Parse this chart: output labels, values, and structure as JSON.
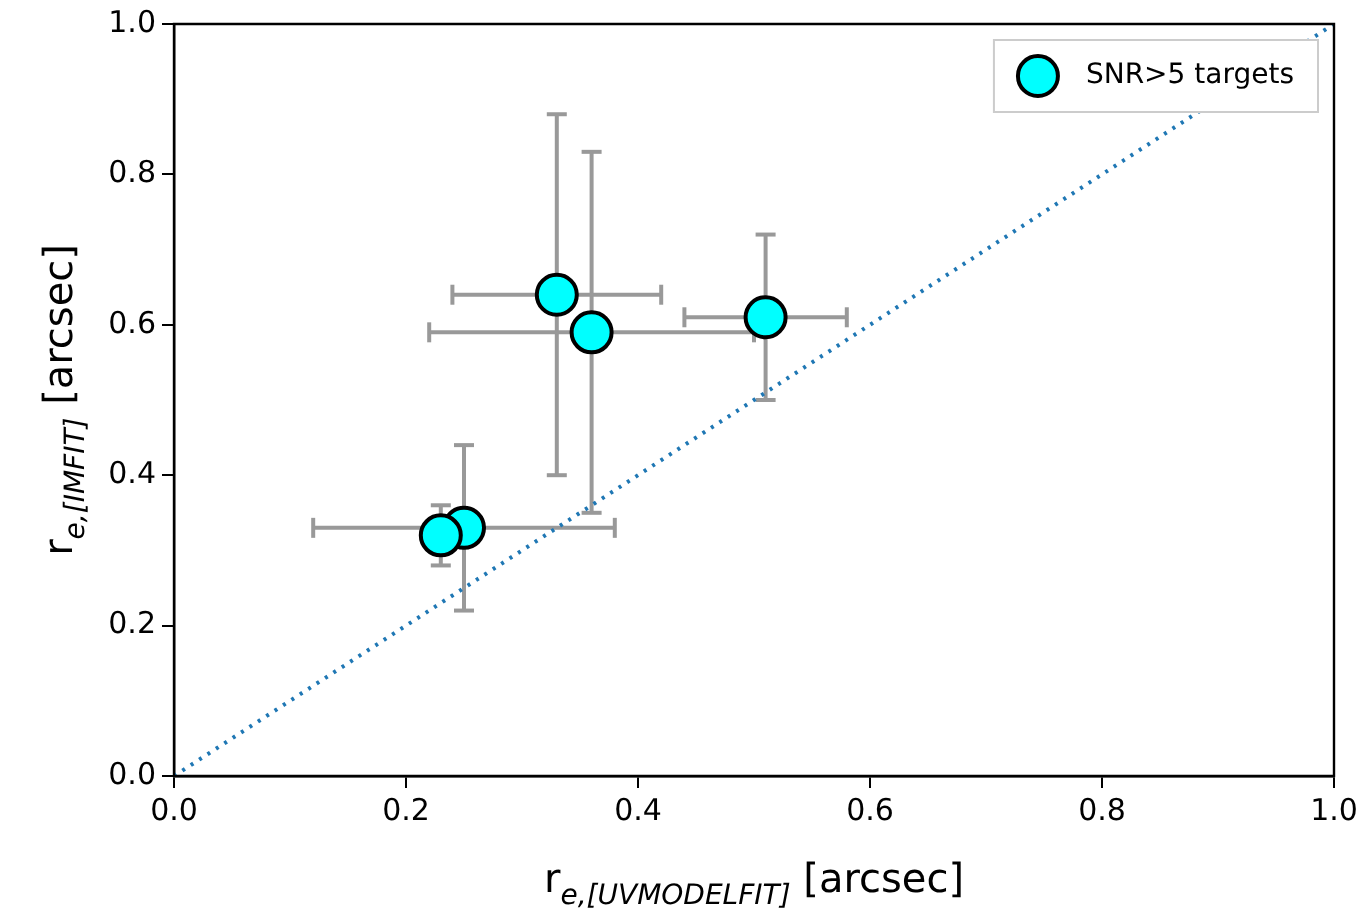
{
  "chart_data": {
    "type": "scatter",
    "xlabel": "r$_{e,[UVMODELFIT]}$ [arcsec]",
    "ylabel": "r$_{e,[IMFIT]}$ [arcsec]",
    "xlim": [
      0,
      1
    ],
    "ylim": [
      0,
      1
    ],
    "xticks": [
      {
        "value": 0,
        "label": "0.0"
      },
      {
        "value": 0.2,
        "label": "0.2"
      },
      {
        "value": 0.4,
        "label": "0.4"
      },
      {
        "value": 0.6,
        "label": "0.6"
      },
      {
        "value": 0.8,
        "label": "0.8"
      },
      {
        "value": 1,
        "label": "1.0"
      }
    ],
    "yticks": [
      {
        "value": 0,
        "label": "0.0"
      },
      {
        "value": 0.2,
        "label": "0.2"
      },
      {
        "value": 0.4,
        "label": "0.4"
      },
      {
        "value": 0.6,
        "label": "0.6"
      },
      {
        "value": 0.8,
        "label": "0.8"
      },
      {
        "value": 1,
        "label": "1.0"
      }
    ],
    "grid": false,
    "legend": "top right",
    "series": [
      {
        "type": "line",
        "color": "#1f77b4",
        "x": [
          0,
          1
        ],
        "values": [
          0,
          1
        ],
        "line_style": "dotted",
        "marker": "none"
      },
      {
        "name": "SNR>5 targets",
        "color": "#00ffff",
        "marker": "circle",
        "x": [
          0.33,
          0.36,
          0.51,
          0.25,
          0.23
        ],
        "values": [
          0.64,
          0.59,
          0.61,
          0.33,
          0.32
        ],
        "errors": [
          [
            0.4,
            0.88
          ],
          [
            0.35,
            0.83
          ],
          [
            0.5,
            0.72
          ],
          [
            0.22,
            0.44
          ],
          [
            0.28,
            0.36
          ]
        ],
        "xerrors": [
          [
            0.24,
            0.42
          ],
          [
            0.22,
            0.5
          ],
          [
            0.44,
            0.58
          ],
          [
            0.12,
            0.38
          ],
          null
        ]
      }
    ]
  }
}
